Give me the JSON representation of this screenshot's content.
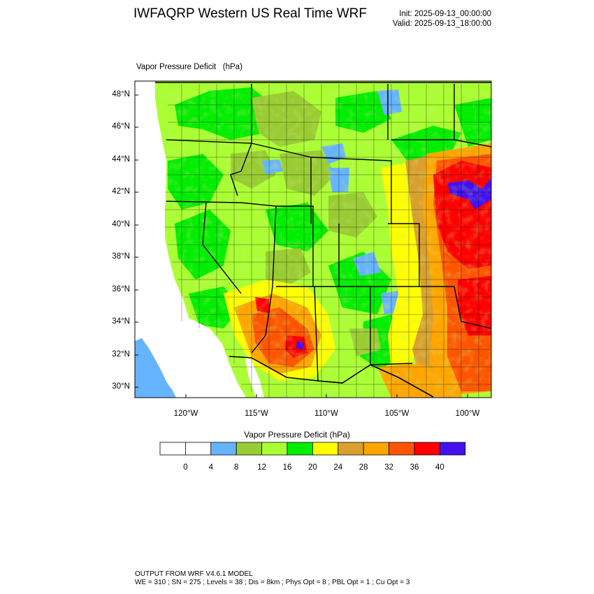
{
  "header": {
    "title": "IWFAQRP Western US Real Time WRF",
    "init": "Init: 2025-09-13_00:00:00",
    "valid": "Valid: 2025-09-13_18:00:00"
  },
  "map": {
    "field_label": "Vapor Pressure Deficit   (hPa)",
    "lat_ticks": [
      "48°N",
      "46°N",
      "44°N",
      "42°N",
      "40°N",
      "38°N",
      "36°N",
      "34°N",
      "32°N",
      "30°N"
    ],
    "lon_ticks": [
      "120°W",
      "115°W",
      "110°W",
      "105°W",
      "100°W"
    ],
    "water_color": "#66b3ff",
    "background_color": "#ffffff"
  },
  "colorbar": {
    "title": "Vapor Pressure Deficit  (hPa)",
    "labels": [
      "0",
      "4",
      "8",
      "12",
      "16",
      "20",
      "24",
      "28",
      "32",
      "36",
      "40"
    ],
    "colors": [
      "#ffffff",
      "#ffffff",
      "#66b3ff",
      "#99cc33",
      "#aaff33",
      "#00ee00",
      "#ffff00",
      "#d9a030",
      "#ffa500",
      "#ff5500",
      "#ff0000",
      "#4411ee"
    ]
  },
  "footer": {
    "line1": "OUTPUT FROM WRF V4.6.1 MODEL",
    "line2": "WE = 310 ; SN = 275 ; Levels = 38 ; Dis = 8km ; Phys Opt = 8 ; PBL Opt = 1 ; Cu Opt = 3"
  }
}
